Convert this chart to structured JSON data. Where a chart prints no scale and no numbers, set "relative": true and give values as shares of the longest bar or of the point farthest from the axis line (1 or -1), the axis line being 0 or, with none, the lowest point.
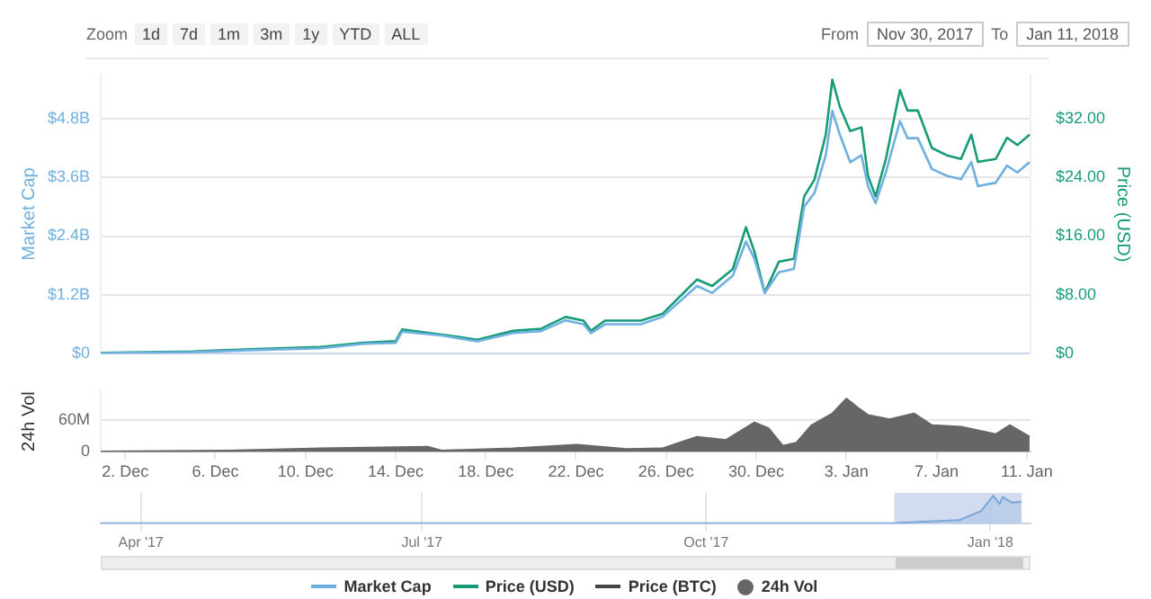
{
  "chart_data": [
    {
      "type": "line",
      "annotations": [
        "Zoom",
        "1d",
        "7d",
        "1m",
        "3m",
        "1y",
        "YTD",
        "ALL",
        "From",
        "Nov 30, 2017",
        "To",
        "Jan 11, 2018"
      ],
      "ylabel": "Market Cap",
      "y2label": "Price (USD)",
      "tick_labels": "y",
      "xlim": [
        "2017-11-30T22:00",
        "2018-01-11T04:00"
      ],
      "ylim": [
        0,
        5.7
      ],
      "yticks": [
        {
          "value": 0,
          "label": "$0"
        },
        {
          "value": 1.2,
          "label": "$1.2B"
        },
        {
          "value": 2.4,
          "label": "$2.4B"
        },
        {
          "value": 3.6,
          "label": "$3.6B"
        },
        {
          "value": 4.8,
          "label": "$4.8B"
        }
      ],
      "y2lim": [
        0,
        38
      ],
      "y2ticks": [
        {
          "value": 0,
          "label": "$0"
        },
        {
          "value": 8,
          "label": "$8.00"
        },
        {
          "value": 16,
          "label": "$16.00"
        },
        {
          "value": 24,
          "label": "$24.00"
        },
        {
          "value": 32,
          "label": "$32.00"
        }
      ],
      "grid": "y",
      "legend": "bottom",
      "marker": "none",
      "series": [
        {
          "name": "Market Cap",
          "color": "#6fb0e0",
          "x": [
            "2017-11-30T22:00",
            "2017-12-05T00:00",
            "2017-12-07T12:00",
            "2017-12-10T16:00",
            "2017-12-12T14:00",
            "2017-12-14T00:00",
            "2017-12-14T07:00",
            "2017-12-16T01:00",
            "2017-12-17T15:00",
            "2017-12-19T05:00",
            "2017-12-20T11:00",
            "2017-12-21T13:00",
            "2017-12-22T08:00",
            "2017-12-22T16:00",
            "2017-12-23T07:00",
            "2017-12-24T21:00",
            "2017-12-25T20:00",
            "2017-12-27T09:00",
            "2017-12-28T01:00",
            "2017-12-28T23:00",
            "2017-12-29T13:00",
            "2017-12-29T22:00",
            "2017-12-30T09:00",
            "2017-12-31T00:00",
            "2017-12-31T16:00",
            "2018-01-01T03:00",
            "2018-01-01T14:00",
            "2018-01-02T02:00",
            "2018-01-02T09:00",
            "2018-01-02T17:00",
            "2018-01-03T04:00",
            "2018-01-03T16:00",
            "2018-01-03T23:00",
            "2018-01-04T07:00",
            "2018-01-04T18:00",
            "2018-01-05T09:00",
            "2018-01-05T17:00",
            "2018-01-06T04:00",
            "2018-01-06T19:00",
            "2018-01-07T11:00",
            "2018-01-08T02:00",
            "2018-01-08T13:00",
            "2018-01-08T20:00",
            "2018-01-09T15:00",
            "2018-01-10T03:00",
            "2018-01-10T14:00",
            "2018-01-11T03:00"
          ],
          "values": [
            0.01,
            0.03,
            0.07,
            0.11,
            0.2,
            0.22,
            0.45,
            0.37,
            0.25,
            0.42,
            0.46,
            0.68,
            0.6,
            0.42,
            0.6,
            0.6,
            0.75,
            1.38,
            1.24,
            1.59,
            2.29,
            1.94,
            1.24,
            1.66,
            1.73,
            3.0,
            3.28,
            4.05,
            4.96,
            4.47,
            3.91,
            4.05,
            3.42,
            3.07,
            3.7,
            4.75,
            4.4,
            4.4,
            3.77,
            3.63,
            3.56,
            3.91,
            3.42,
            3.49,
            3.84,
            3.7,
            3.91
          ]
        },
        {
          "name": "Price (USD)",
          "color": "#169b78",
          "axis": "y2",
          "x": [
            "2017-11-30T22:00",
            "2017-12-05T00:00",
            "2017-12-07T12:00",
            "2017-12-10T16:00",
            "2017-12-12T14:00",
            "2017-12-14T00:00",
            "2017-12-14T07:00",
            "2017-12-16T01:00",
            "2017-12-17T15:00",
            "2017-12-19T05:00",
            "2017-12-20T11:00",
            "2017-12-21T13:00",
            "2017-12-22T08:00",
            "2017-12-22T16:00",
            "2017-12-23T07:00",
            "2017-12-24T21:00",
            "2017-12-25T20:00",
            "2017-12-27T09:00",
            "2017-12-28T01:00",
            "2017-12-28T23:00",
            "2017-12-29T13:00",
            "2017-12-29T22:00",
            "2017-12-30T09:00",
            "2017-12-31T00:00",
            "2017-12-31T16:00",
            "2018-01-01T03:00",
            "2018-01-01T14:00",
            "2018-01-02T02:00",
            "2018-01-02T09:00",
            "2018-01-02T17:00",
            "2018-01-03T04:00",
            "2018-01-03T16:00",
            "2018-01-03T23:00",
            "2018-01-04T07:00",
            "2018-01-04T18:00",
            "2018-01-05T09:00",
            "2018-01-05T17:00",
            "2018-01-06T04:00",
            "2018-01-06T19:00",
            "2018-01-07T11:00",
            "2018-01-08T02:00",
            "2018-01-08T13:00",
            "2018-01-08T20:00",
            "2018-01-09T15:00",
            "2018-01-10T03:00",
            "2018-01-10T14:00",
            "2018-01-11T03:00"
          ],
          "values": [
            0.1,
            0.3,
            0.6,
            0.9,
            1.5,
            1.7,
            3.3,
            2.6,
            1.9,
            3.1,
            3.4,
            5.0,
            4.5,
            3.1,
            4.5,
            4.5,
            5.4,
            10.1,
            9.2,
            11.5,
            17.2,
            13.9,
            8.3,
            12.5,
            12.9,
            21.4,
            23.7,
            29.8,
            37.3,
            33.6,
            30.3,
            30.8,
            24.2,
            21.4,
            26.5,
            35.9,
            33.1,
            33.1,
            28.0,
            27.0,
            26.5,
            29.8,
            26.1,
            26.5,
            29.4,
            28.4,
            29.8
          ]
        },
        {
          "name": "Price (BTC)",
          "color": "#434348",
          "axis": "y2"
        }
      ]
    },
    {
      "type": "area",
      "ylabel": "24h Vol",
      "legend": "bottom",
      "grid": "y",
      "marker": "none",
      "xlim": [
        "2017-11-30T22:00",
        "2018-01-11T04:00"
      ],
      "xticks": [
        {
          "value": "2017-12-02",
          "label": "2. Dec"
        },
        {
          "value": "2017-12-06",
          "label": "6. Dec"
        },
        {
          "value": "2017-12-10",
          "label": "10. Dec"
        },
        {
          "value": "2017-12-14",
          "label": "14. Dec"
        },
        {
          "value": "2017-12-18",
          "label": "18. Dec"
        },
        {
          "value": "2017-12-22",
          "label": "22. Dec"
        },
        {
          "value": "2017-12-26",
          "label": "26. Dec"
        },
        {
          "value": "2017-12-30",
          "label": "30. Dec"
        },
        {
          "value": "2018-01-03",
          "label": "3. Jan"
        },
        {
          "value": "2018-01-07",
          "label": "7. Jan"
        },
        {
          "value": "2018-01-11",
          "label": "11. Jan"
        }
      ],
      "ylim": [
        0,
        115
      ],
      "yticks": [
        0,
        {
          "value": 60,
          "label": "60M"
        }
      ],
      "series": [
        {
          "name": "24h Vol",
          "color": "#666666",
          "x": [
            "2017-11-30T22:00",
            "2017-12-06T14:00",
            "2017-12-10T16:00",
            "2017-12-15T10:00",
            "2017-12-16T01:00",
            "2017-12-19T05:00",
            "2017-12-22T01:00",
            "2017-12-24T06:00",
            "2017-12-25T20:00",
            "2017-12-27T09:00",
            "2017-12-28T16:00",
            "2017-12-29T22:00",
            "2017-12-30T13:00",
            "2017-12-31T04:00",
            "2017-12-31T19:00",
            "2018-01-01T11:00",
            "2018-01-02T09:00",
            "2018-01-03T00:00",
            "2018-01-03T12:00",
            "2018-01-03T23:00",
            "2018-01-04T22:00",
            "2018-01-06T00:00",
            "2018-01-06T19:00",
            "2018-01-08T02:00",
            "2018-01-09T15:00",
            "2018-01-10T06:00",
            "2018-01-11T03:00"
          ],
          "values": [
            0,
            2,
            6,
            9,
            2,
            6,
            13,
            5,
            6,
            28,
            22,
            55,
            44,
            11,
            17,
            50,
            72,
            100,
            83,
            69,
            61,
            72,
            50,
            47,
            33,
            50,
            28
          ]
        }
      ]
    },
    {
      "type": "area",
      "relative": true,
      "grid": "x",
      "tick_labels": "x",
      "color": "#7aa6d8",
      "xlim": [
        "2017-03-19",
        "2018-01-14"
      ],
      "xticks": [
        {
          "value": "2017-04-01",
          "label": "Apr '17"
        },
        {
          "value": "2017-07-01",
          "label": "Jul '17"
        },
        {
          "value": "2017-10-01",
          "label": "Oct '17"
        },
        {
          "value": "2018-01-01",
          "label": "Jan '18"
        }
      ],
      "x": [
        "2017-03-19",
        "2017-06-01",
        "2017-09-01",
        "2017-11-30",
        "2017-12-14",
        "2017-12-22",
        "2017-12-29",
        "2018-01-02",
        "2018-01-04",
        "2018-01-05",
        "2018-01-08",
        "2018-01-11"
      ],
      "values": [
        0.005,
        0.008,
        0.01,
        0.01,
        0.08,
        0.12,
        0.45,
        1,
        0.7,
        0.95,
        0.75,
        0.78
      ],
      "bands": [
        {
          "axis": "x",
          "from": "2017-11-30T22:00",
          "to": "2018-01-11T04:00",
          "color": "#c5d3ee"
        }
      ]
    }
  ]
}
